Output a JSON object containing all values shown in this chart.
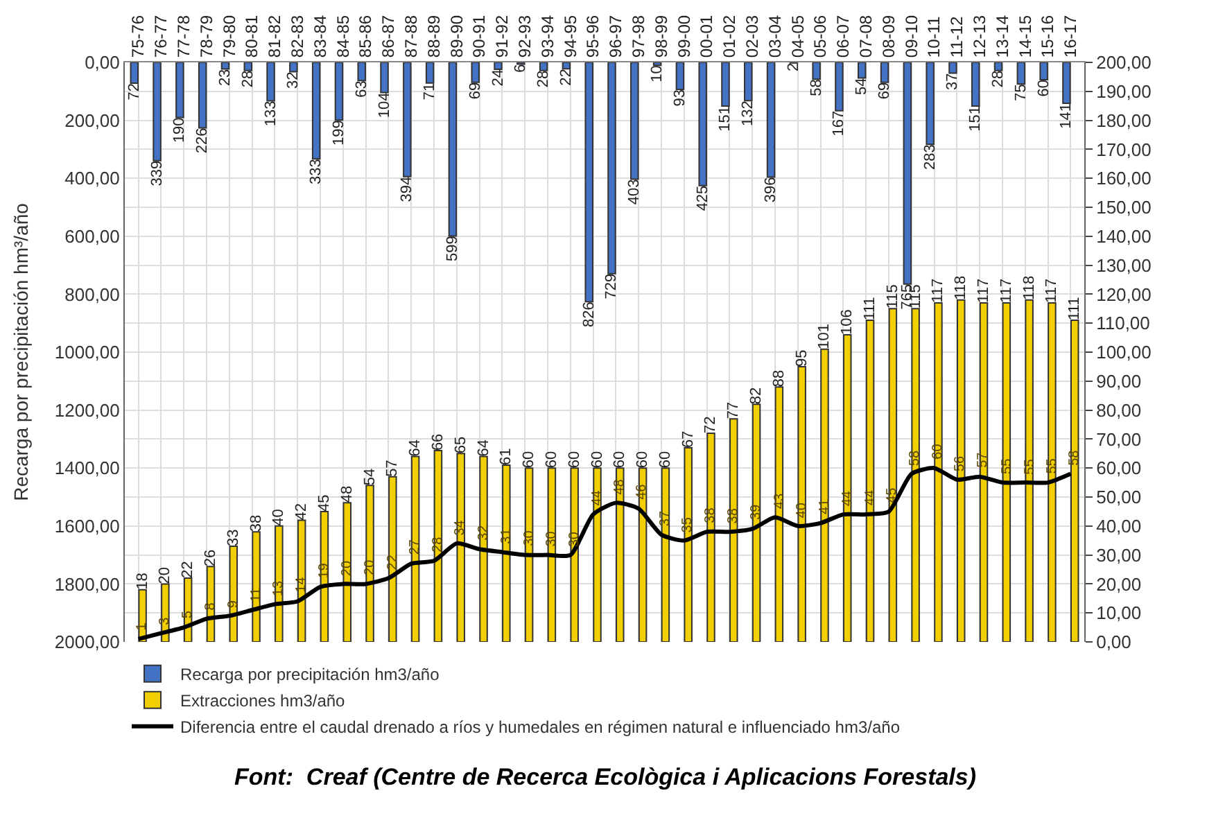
{
  "chart_data": {
    "type": "bar",
    "ylabel": "Recarga por precipitación hm³/año",
    "categories": [
      "75-76",
      "76-77",
      "77-78",
      "78-79",
      "79-80",
      "80-81",
      "81-82",
      "82-83",
      "83-84",
      "84-85",
      "85-86",
      "86-87",
      "87-88",
      "88-89",
      "89-90",
      "90-91",
      "91-92",
      "92-93",
      "93-94",
      "94-95",
      "95-96",
      "96-97",
      "97-98",
      "98-99",
      "99-00",
      "00-01",
      "01-02",
      "02-03",
      "03-04",
      "04-05",
      "05-06",
      "06-07",
      "07-08",
      "08-09",
      "09-10",
      "10-11",
      "11-12",
      "12-13",
      "13-14",
      "14-15",
      "15-16",
      "16-17"
    ],
    "series": [
      {
        "name": "Recarga por precipitación hm3/año",
        "color": "#4472c4",
        "axis": "y",
        "values": [
          72,
          339,
          190,
          226,
          23,
          28,
          133,
          32,
          333,
          199,
          63,
          104,
          394,
          71,
          599,
          69,
          24,
          6,
          28,
          22,
          826,
          729,
          403,
          10,
          93,
          425,
          151,
          132,
          396,
          2,
          58,
          167,
          54,
          69,
          765,
          283,
          37,
          151,
          28,
          75,
          60,
          141
        ]
      },
      {
        "name": "Extracciones hm3/año",
        "color": "#f2cf00",
        "axis": "y2",
        "values": [
          18,
          20,
          22,
          26,
          33,
          38,
          40,
          42,
          45,
          48,
          54,
          57,
          64,
          66,
          65,
          64,
          61,
          60,
          60,
          60,
          60,
          60,
          60,
          60,
          67,
          72,
          77,
          82,
          88,
          95,
          101,
          106,
          111,
          115,
          115,
          117,
          118,
          117,
          117,
          118,
          117,
          111
        ]
      },
      {
        "name": "Diferencia entre el caudal drenado a ríos y humedales en régimen natural e influenciado hm3/año",
        "type": "line",
        "color": "#000000",
        "axis": "y2",
        "values": [
          1,
          3,
          5,
          8,
          9,
          11,
          13,
          14,
          19,
          20,
          20,
          22,
          27,
          28,
          34,
          32,
          31,
          30,
          30,
          30,
          44,
          48,
          46,
          37,
          35,
          38,
          38,
          39,
          43,
          40,
          41,
          44,
          44,
          45,
          58,
          60,
          56,
          57,
          55,
          55,
          55,
          58
        ]
      }
    ],
    "ylim": [
      2000,
      0
    ],
    "yticks": [
      {
        "value": 0,
        "label": "0,00"
      },
      {
        "value": 200,
        "label": "200,00"
      },
      {
        "value": 400,
        "label": "400,00"
      },
      {
        "value": 600,
        "label": "600,00"
      },
      {
        "value": 800,
        "label": "800,00"
      },
      {
        "value": 1000,
        "label": "1000,00"
      },
      {
        "value": 1200,
        "label": "1200,00"
      },
      {
        "value": 1400,
        "label": "1400,00"
      },
      {
        "value": 1600,
        "label": "1600,00"
      },
      {
        "value": 1800,
        "label": "1800,00"
      },
      {
        "value": 2000,
        "label": "2000,00"
      }
    ],
    "y2lim": [
      0,
      200
    ],
    "y2ticks": [
      {
        "value": 0,
        "label": "0,00"
      },
      {
        "value": 10,
        "label": "10,00"
      },
      {
        "value": 20,
        "label": "20,00"
      },
      {
        "value": 30,
        "label": "30,00"
      },
      {
        "value": 40,
        "label": "40,00"
      },
      {
        "value": 50,
        "label": "50,00"
      },
      {
        "value": 60,
        "label": "60,00"
      },
      {
        "value": 70,
        "label": "70,00"
      },
      {
        "value": 80,
        "label": "80,00"
      },
      {
        "value": 90,
        "label": "90,00"
      },
      {
        "value": 100,
        "label": "100,00"
      },
      {
        "value": 110,
        "label": "110,00"
      },
      {
        "value": 120,
        "label": "120,00"
      },
      {
        "value": 130,
        "label": "130,00"
      },
      {
        "value": 140,
        "label": "140,00"
      },
      {
        "value": 150,
        "label": "150,00"
      },
      {
        "value": 160,
        "label": "160,00"
      },
      {
        "value": 170,
        "label": "170,00"
      },
      {
        "value": 180,
        "label": "180,00"
      },
      {
        "value": 190,
        "label": "190,00"
      },
      {
        "value": 200,
        "label": "200,00"
      }
    ],
    "grid": true,
    "legend": "bottom",
    "data_labels": true,
    "annotations": [
      "Font:  Creaf (Centre de Recerca Ecològica i Aplicacions Forestals)"
    ]
  }
}
